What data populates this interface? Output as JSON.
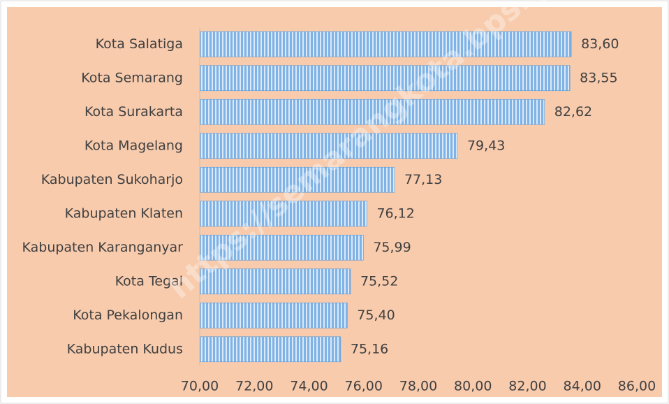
{
  "chart_data": {
    "type": "bar",
    "orientation": "horizontal",
    "categories": [
      "Kota Salatiga",
      "Kota Semarang",
      "Kota Surakarta",
      "Kota Magelang",
      "Kabupaten Sukoharjo",
      "Kabupaten Klaten",
      "Kabupaten Karanganyar",
      "Kota Tegal",
      "Kota Pekalongan",
      "Kabupaten Kudus"
    ],
    "values": [
      83.6,
      83.55,
      82.62,
      79.43,
      77.13,
      76.12,
      75.99,
      75.52,
      75.4,
      75.16
    ],
    "value_labels": [
      "83,60",
      "83,55",
      "82,62",
      "79,43",
      "77,13",
      "76,12",
      "75,99",
      "75,52",
      "75,40",
      "75,16"
    ],
    "color": "#7fb2e5",
    "xlim": [
      70,
      86
    ],
    "xticks": [
      {
        "value": 70,
        "label": "70,00"
      },
      {
        "value": 72,
        "label": "72,00"
      },
      {
        "value": 74,
        "label": "74,00"
      },
      {
        "value": 76,
        "label": "76,00"
      },
      {
        "value": 78,
        "label": "78,00"
      },
      {
        "value": 80,
        "label": "80,00"
      },
      {
        "value": 82,
        "label": "82,00"
      },
      {
        "value": 84,
        "label": "84,00"
      },
      {
        "value": 86,
        "label": "86,00"
      }
    ],
    "grid": false,
    "watermark": "https://semarangkota.bps.go.id"
  }
}
